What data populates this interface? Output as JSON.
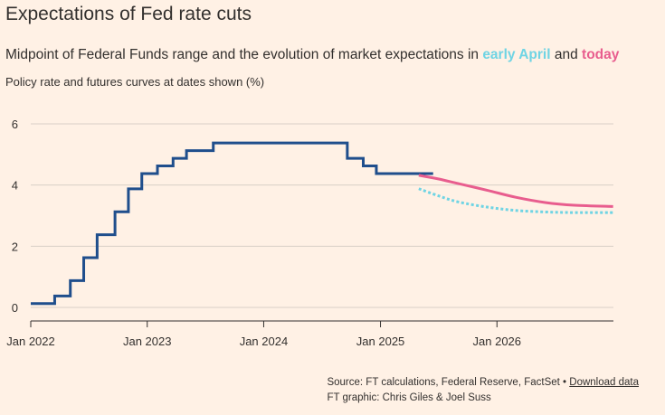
{
  "title": "Expectations of Fed rate cuts",
  "subtitle": {
    "prefix": "Midpoint of Federal Funds range and the evolution of market expectations in ",
    "april": "early April",
    "middle": " and ",
    "today": "today"
  },
  "axis_note": "Policy rate and futures curves at dates shown (%)",
  "colors": {
    "background": "#fff1e5",
    "policy_rate": "#1f4e8c",
    "early_april": "#6fd4e4",
    "today": "#e85d8e",
    "gridline": "#d8cfc6"
  },
  "source": {
    "text": "Source: FT calculations, Federal Reserve, FactSet •",
    "link": "Download data",
    "credit": "FT graphic: Chris Giles & Joel Suss"
  },
  "chart_data": {
    "type": "line",
    "title": "Expectations of Fed rate cuts",
    "ylabel": "Policy rate and futures curves at dates shown (%)",
    "ylim": [
      0,
      6
    ],
    "yticks": [
      0,
      2,
      4,
      6
    ],
    "xlim": [
      "2022-01-01",
      "2027-01-01"
    ],
    "xticks": [
      {
        "date": "2022-01-01",
        "label": "Jan 2022"
      },
      {
        "date": "2023-01-01",
        "label": "Jan 2023"
      },
      {
        "date": "2024-01-01",
        "label": "Jan 2024"
      },
      {
        "date": "2025-01-01",
        "label": "Jan 2025"
      },
      {
        "date": "2026-01-01",
        "label": "Jan 2026"
      }
    ],
    "grid": true,
    "series": [
      {
        "key": "policy_rate",
        "style": "step",
        "points": [
          [
            "2022-01-01",
            0.125
          ],
          [
            "2022-03-17",
            0.375
          ],
          [
            "2022-05-05",
            0.875
          ],
          [
            "2022-06-16",
            1.625
          ],
          [
            "2022-07-28",
            2.375
          ],
          [
            "2022-09-22",
            3.125
          ],
          [
            "2022-11-03",
            3.875
          ],
          [
            "2022-12-15",
            4.375
          ],
          [
            "2023-02-02",
            4.625
          ],
          [
            "2023-03-23",
            4.875
          ],
          [
            "2023-05-04",
            5.125
          ],
          [
            "2023-07-27",
            5.375
          ],
          [
            "2024-09-19",
            4.875
          ],
          [
            "2024-11-08",
            4.625
          ],
          [
            "2024-12-19",
            4.375
          ],
          [
            "2025-06-15",
            4.375
          ]
        ]
      },
      {
        "key": "early_april",
        "style": "dotted",
        "points": [
          [
            "2025-05-01",
            3.88
          ],
          [
            "2025-07-01",
            3.65
          ],
          [
            "2025-09-01",
            3.45
          ],
          [
            "2025-12-01",
            3.28
          ],
          [
            "2026-03-01",
            3.17
          ],
          [
            "2026-06-01",
            3.12
          ],
          [
            "2026-09-01",
            3.1
          ],
          [
            "2026-12-31",
            3.1
          ]
        ]
      },
      {
        "key": "today",
        "style": "solid",
        "points": [
          [
            "2025-05-01",
            4.32
          ],
          [
            "2025-07-01",
            4.2
          ],
          [
            "2025-09-01",
            4.05
          ],
          [
            "2025-12-01",
            3.83
          ],
          [
            "2026-03-01",
            3.6
          ],
          [
            "2026-06-01",
            3.43
          ],
          [
            "2026-09-01",
            3.34
          ],
          [
            "2026-12-31",
            3.3
          ]
        ]
      }
    ]
  }
}
